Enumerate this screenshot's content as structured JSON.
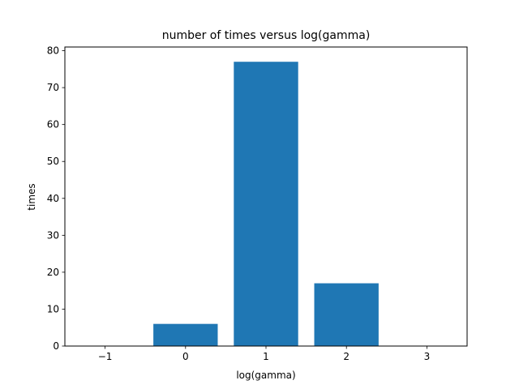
{
  "chart_data": {
    "type": "bar",
    "title": "number of times versus log(gamma)",
    "xlabel": "log(gamma)",
    "ylabel": "times",
    "x": [
      -1,
      0,
      1,
      2,
      3
    ],
    "values": [
      0,
      6,
      77,
      17,
      0
    ],
    "xlim": [
      -1.5,
      3.5
    ],
    "ylim": [
      0,
      81
    ],
    "xticks": [
      -1,
      0,
      1,
      2,
      3
    ],
    "xtick_labels": [
      "−1",
      "0",
      "1",
      "2",
      "3"
    ],
    "yticks": [
      0,
      10,
      20,
      30,
      40,
      50,
      60,
      70,
      80
    ],
    "ytick_labels": [
      "0",
      "10",
      "20",
      "30",
      "40",
      "50",
      "60",
      "70",
      "80"
    ],
    "bar_width": 0.8,
    "bar_color": "#1f77b4",
    "grid": false,
    "legend": "none"
  }
}
